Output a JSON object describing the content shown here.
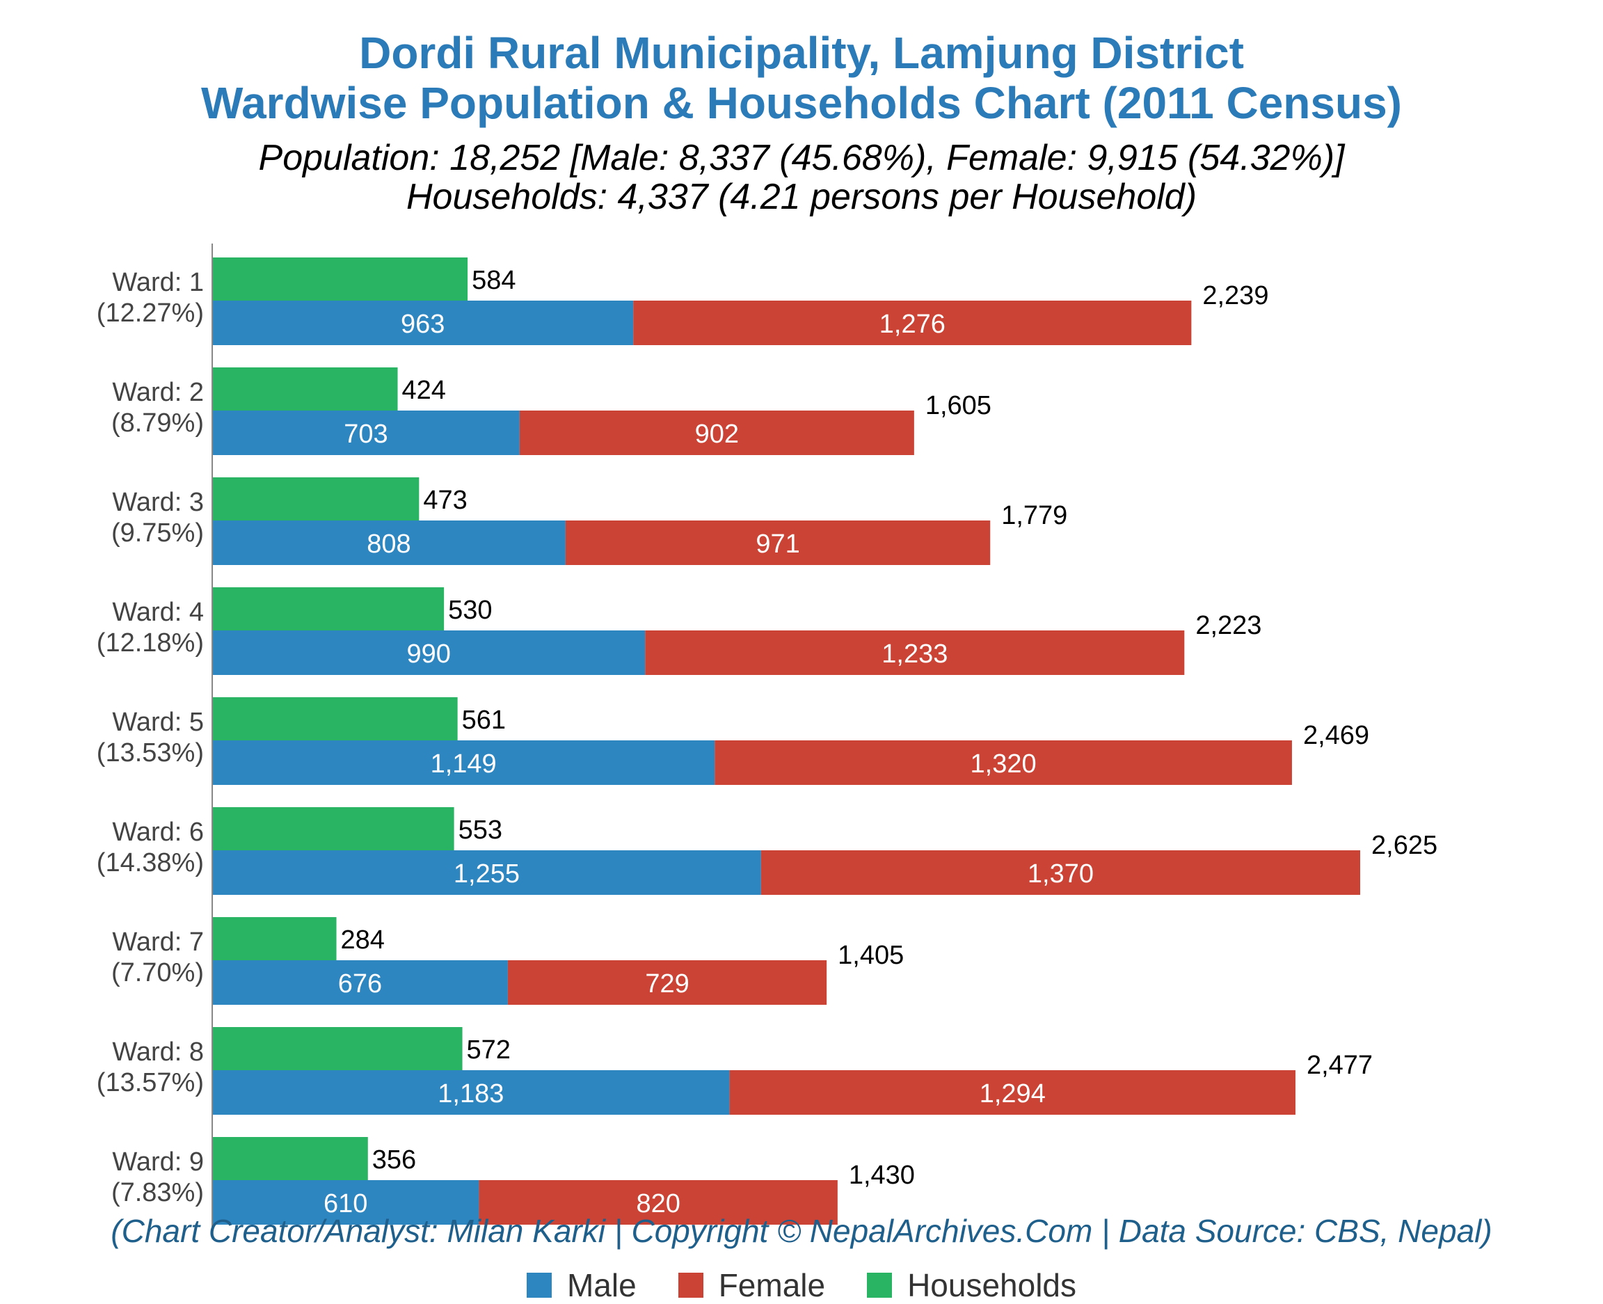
{
  "chart_data": {
    "type": "bar",
    "title": "Dordi Rural Municipality, Lamjung District",
    "subtitle": "Wardwise Population & Households Chart (2011 Census)",
    "summary_line1": "Population: 18,252 [Male: 8,337 (45.68%), Female: 9,915 (54.32%)]",
    "summary_line2": "Households: 4,337 (4.21 persons per Household)",
    "credit": "(Chart Creator/Analyst: Milan Karki | Copyright © NepalArchives.Com | Data Source: CBS, Nepal)",
    "xlim": [
      0,
      2625
    ],
    "categories": [
      "Ward: 1",
      "Ward: 2",
      "Ward: 3",
      "Ward: 4",
      "Ward: 5",
      "Ward: 6",
      "Ward: 7",
      "Ward: 8",
      "Ward: 9"
    ],
    "category_percents": [
      "(12.27%)",
      "(8.79%)",
      "(9.75%)",
      "(12.18%)",
      "(13.53%)",
      "(14.38%)",
      "(7.70%)",
      "(13.57%)",
      "(7.83%)"
    ],
    "series": [
      {
        "name": "Male",
        "color": "#2e86c1",
        "values": [
          963,
          703,
          808,
          990,
          1149,
          1255,
          676,
          1183,
          610
        ]
      },
      {
        "name": "Female",
        "color": "#cb4335",
        "values": [
          1276,
          902,
          971,
          1233,
          1320,
          1370,
          729,
          1294,
          820
        ]
      },
      {
        "name": "Households",
        "color": "#28b463",
        "values": [
          584,
          424,
          473,
          530,
          561,
          553,
          284,
          572,
          356
        ]
      }
    ],
    "totals": [
      2239,
      1605,
      1779,
      2223,
      2469,
      2625,
      1405,
      2477,
      1430
    ],
    "legend_position": "bottom",
    "grid": false
  }
}
